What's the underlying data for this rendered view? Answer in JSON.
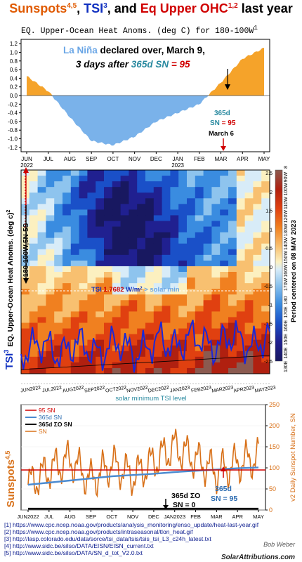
{
  "title": {
    "part1": "Sunspots",
    "part1_sup": "4,5",
    "sep1": ", ",
    "part2": "TSI",
    "part2_sup": "3",
    "sep2": ", and ",
    "part3": "Eq Upper OHC",
    "part3_sup": "1,2",
    "part4": " last year"
  },
  "panel_top": {
    "subtitle": "EQ. Upper-Ocean Heat Anoms. (deg C) for 180-100W",
    "subtitle_sup": "1",
    "annot_line1_a": "La Niña",
    "annot_line1_b": " declared over, March 9,",
    "annot_line2_a": "3 days after ",
    "annot_line2_b": "365d SN",
    "annot_line2_c": " = 95",
    "label_365d": "365d",
    "label_sn": "SN",
    "label_eq": " = 95",
    "label_march6": "March 6",
    "colors": {
      "positive": "#f5a32a",
      "negative": "#7ab2ea",
      "lanina": "#6aa6e6",
      "red": "#d00000",
      "teal": "#2a8aa0"
    }
  },
  "panel_mid": {
    "ylabel": "EQ. Upper-Ocean Heat Anoms. (deg c)",
    "ylabel_sup": "2",
    "region": "180-100W,5N-5S",
    "right_label": "Period centered on 08 MAY 2023",
    "tsi_label": "TSI",
    "tsi_sup": "3",
    "tsi_annot_a": "TSI ",
    "tsi_annot_b": "1.7682",
    "tsi_annot_c": " W/m",
    "tsi_annot_d": "2",
    "tsi_annot_e": " > solar min",
    "solar_min": "solar minimum TSI level",
    "lon_ticks": [
      "130E",
      "140E",
      "150E",
      "160E",
      "170E",
      "180",
      "170W",
      "160W",
      "150W",
      "140W",
      "130W",
      "120W",
      "110W",
      "100W",
      "90W",
      "80W"
    ],
    "colorbar": [
      "2.5",
      "2",
      "1.5",
      "1",
      "0.5",
      "0",
      "-0.5",
      "-1",
      "-1.5",
      "-2",
      "-2.5"
    ],
    "months": [
      "JUN2022",
      "JUL2022",
      "AUG2022",
      "SEP2022",
      "OCT2022",
      "NOV2022",
      "DEC2022",
      "JAN2023",
      "FEB2023",
      "MAR2023",
      "APR2023",
      "MAY2023"
    ]
  },
  "panel_bot": {
    "legend": [
      "95 SN",
      "365d SN",
      "365d ΣO SN",
      "SN"
    ],
    "ylabel_right": "v2 Daily Sunspot Number, SN",
    "ylabel_left": "Sunspots",
    "ylabel_left_sup": "4,5",
    "annot_sum_a": "365d ΣO",
    "annot_sum_b": "SN = 0",
    "annot_365_a": "365d",
    "annot_365_b": "SN = 95",
    "months": [
      "JUN2022",
      "JUL",
      "AUG",
      "SEP",
      "OCT",
      "NOV",
      "DEC",
      "JAN2023",
      "FEB",
      "MAR",
      "APR",
      "MAY"
    ]
  },
  "refs": [
    "[1] https://www.cpc.ncep.noaa.gov/products/analysis_monitoring/enso_update/heat-last-year.gif",
    "[2] https://www.cpc.ncep.noaa.gov/products/intraseasonal/tlon_heat.gif",
    "[3] http://lasp.colorado.edu/data/sorce/tsi_data/tsis/tsis_tsi_L3_c24h_latest.txt",
    "[4] http://www.sidc.be/silso/DATA/EISN/EISN_current.txt",
    "[5] http://www.sidc.be/silso/DATA/SN_d_tot_V2.0.txt"
  ],
  "credit": "Bob Weber",
  "site": "SolarAttributions.com",
  "chart_data": [
    {
      "type": "area",
      "title": "EQ. Upper-Ocean Heat Anoms. (deg C) for 180-100W",
      "x": [
        "JUN 2022",
        "JUL",
        "AUG",
        "SEP",
        "OCT",
        "NOV",
        "DEC",
        "JAN 2023",
        "FEB",
        "MAR",
        "APR",
        "MAY"
      ],
      "y_ticks": [
        -1.2,
        -1.0,
        -0.8,
        -0.6,
        -0.4,
        -0.2,
        0,
        0.2,
        0.4,
        0.6,
        0.8,
        1.0,
        1.2
      ],
      "ylim": [
        -1.3,
        1.3
      ],
      "values": [
        0.45,
        0.1,
        -0.5,
        -1.05,
        -1.15,
        -0.95,
        -0.6,
        -0.4,
        -0.2,
        0.3,
        0.85,
        1.1
      ]
    },
    {
      "type": "heatmap",
      "title": "EQ. Upper-Ocean Heat Anoms. (deg c)",
      "x": [
        "130E",
        "140E",
        "150E",
        "160E",
        "170E",
        "180",
        "170W",
        "160W",
        "150W",
        "140W",
        "130W",
        "120W",
        "110W",
        "100W",
        "90W",
        "80W"
      ],
      "y": [
        "JUN2022",
        "JUL2022",
        "AUG2022",
        "SEP2022",
        "OCT2022",
        "NOV2022",
        "DEC2022",
        "JAN2023",
        "FEB2023",
        "MAR2023",
        "APR2023",
        "MAY2023"
      ],
      "colorbar_range": [
        -2.5,
        2.5
      ],
      "tsi_current": 1.7682
    },
    {
      "type": "line",
      "x": [
        "JUN2022",
        "JUL",
        "AUG",
        "SEP",
        "OCT",
        "NOV",
        "DEC",
        "JAN2023",
        "FEB",
        "MAR",
        "APR",
        "MAY"
      ],
      "ylim": [
        0,
        250
      ],
      "y_ticks": [
        0,
        50,
        100,
        150,
        200,
        250
      ],
      "series": [
        {
          "name": "95 SN",
          "values": [
            95,
            95,
            95,
            95,
            95,
            95,
            95,
            95,
            95,
            95,
            95,
            95
          ]
        },
        {
          "name": "365d SN",
          "values": [
            60,
            65,
            70,
            75,
            80,
            83,
            86,
            90,
            93,
            96,
            99,
            101
          ]
        },
        {
          "name": "365d ΣO SN",
          "values": [
            0,
            0,
            0,
            0,
            0,
            0,
            0,
            0,
            0,
            0,
            0,
            0
          ]
        },
        {
          "name": "SN",
          "values": [
            60,
            95,
            120,
            70,
            110,
            80,
            115,
            150,
            120,
            90,
            110,
            125
          ]
        }
      ]
    }
  ]
}
